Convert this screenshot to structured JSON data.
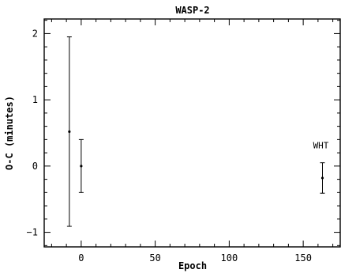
{
  "chart_data": {
    "type": "scatter",
    "title": "WASP-2",
    "xlabel": "Epoch",
    "ylabel": "O-C (minutes)",
    "xlim": [
      -25,
      175
    ],
    "ylim": [
      -1.22,
      2.22
    ],
    "x_ticks": [
      0,
      50,
      100,
      150
    ],
    "y_ticks": [
      -1,
      0,
      1,
      2
    ],
    "tick_labels": {
      "x": [
        "0",
        "50",
        "100",
        "150"
      ],
      "y": [
        "−1",
        "0",
        "1",
        "2"
      ]
    },
    "grid": false,
    "points": [
      {
        "x": -8,
        "y": 0.52,
        "err": 1.43
      },
      {
        "x": 0,
        "y": 0.0,
        "err": 0.4
      },
      {
        "x": 163,
        "y": -0.18,
        "err": 0.23
      }
    ],
    "annotations": [
      {
        "text": "WHT",
        "x": 163,
        "y": 0.27
      }
    ]
  }
}
